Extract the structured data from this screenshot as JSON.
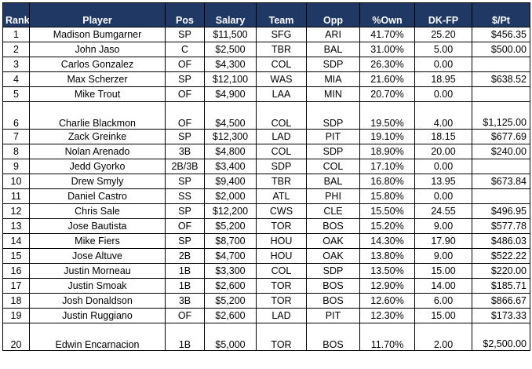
{
  "headers": {
    "rank": "Rank",
    "player": "Player",
    "pos": "Pos",
    "salary": "Salary",
    "team": "Team",
    "opp": "Opp",
    "own": "%Own",
    "dkfp": "DK-FP",
    "per_pt": "$/Pt"
  },
  "rows": [
    {
      "rank": "1",
      "player": "Madison Bumgarner",
      "pos": "SP",
      "salary": "$11,500",
      "team": "SFG",
      "opp": "ARI",
      "own": "41.70%",
      "dkfp": "25.20",
      "per_pt": "$456.35"
    },
    {
      "rank": "2",
      "player": "John Jaso",
      "pos": "C",
      "salary": "$2,500",
      "team": "TBR",
      "opp": "BAL",
      "own": "31.00%",
      "dkfp": "5.00",
      "per_pt": "$500.00"
    },
    {
      "rank": "3",
      "player": "Carlos Gonzalez",
      "pos": "OF",
      "salary": "$4,300",
      "team": "COL",
      "opp": "SDP",
      "own": "26.30%",
      "dkfp": "0.00",
      "per_pt": ""
    },
    {
      "rank": "4",
      "player": "Max Scherzer",
      "pos": "SP",
      "salary": "$12,100",
      "team": "WAS",
      "opp": "MIA",
      "own": "21.60%",
      "dkfp": "18.95",
      "per_pt": "$638.52"
    },
    {
      "rank": "5",
      "player": "Mike Trout",
      "pos": "OF",
      "salary": "$4,900",
      "team": "LAA",
      "opp": "MIN",
      "own": "20.70%",
      "dkfp": "0.00",
      "per_pt": ""
    },
    {
      "rank": "6",
      "player": "Charlie Blackmon",
      "pos": "OF",
      "salary": "$4,500",
      "team": "COL",
      "opp": "SDP",
      "own": "19.50%",
      "dkfp": "4.00",
      "per_pt": "$1,125.00"
    },
    {
      "rank": "7",
      "player": "Zack Greinke",
      "pos": "SP",
      "salary": "$12,300",
      "team": "LAD",
      "opp": "PIT",
      "own": "19.10%",
      "dkfp": "18.15",
      "per_pt": "$677.69"
    },
    {
      "rank": "8",
      "player": "Nolan Arenado",
      "pos": "3B",
      "salary": "$4,800",
      "team": "COL",
      "opp": "SDP",
      "own": "18.90%",
      "dkfp": "20.00",
      "per_pt": "$240.00"
    },
    {
      "rank": "9",
      "player": "Jedd Gyorko",
      "pos": "2B/3B",
      "salary": "$3,400",
      "team": "SDP",
      "opp": "COL",
      "own": "17.10%",
      "dkfp": "0.00",
      "per_pt": ""
    },
    {
      "rank": "10",
      "player": "Drew Smyly",
      "pos": "SP",
      "salary": "$9,400",
      "team": "TBR",
      "opp": "BAL",
      "own": "16.80%",
      "dkfp": "13.95",
      "per_pt": "$673.84"
    },
    {
      "rank": "11",
      "player": "Daniel Castro",
      "pos": "SS",
      "salary": "$2,000",
      "team": "ATL",
      "opp": "PHI",
      "own": "15.80%",
      "dkfp": "0.00",
      "per_pt": ""
    },
    {
      "rank": "12",
      "player": "Chris Sale",
      "pos": "SP",
      "salary": "$12,200",
      "team": "CWS",
      "opp": "CLE",
      "own": "15.50%",
      "dkfp": "24.55",
      "per_pt": "$496.95"
    },
    {
      "rank": "13",
      "player": "Jose Bautista",
      "pos": "OF",
      "salary": "$5,200",
      "team": "TOR",
      "opp": "BOS",
      "own": "15.20%",
      "dkfp": "9.00",
      "per_pt": "$577.78"
    },
    {
      "rank": "14",
      "player": "Mike Fiers",
      "pos": "SP",
      "salary": "$8,700",
      "team": "HOU",
      "opp": "OAK",
      "own": "14.30%",
      "dkfp": "17.90",
      "per_pt": "$486.03"
    },
    {
      "rank": "15",
      "player": "Jose Altuve",
      "pos": "2B",
      "salary": "$4,700",
      "team": "HOU",
      "opp": "OAK",
      "own": "13.80%",
      "dkfp": "9.00",
      "per_pt": "$522.22"
    },
    {
      "rank": "16",
      "player": "Justin Morneau",
      "pos": "1B",
      "salary": "$3,300",
      "team": "COL",
      "opp": "SDP",
      "own": "13.50%",
      "dkfp": "15.00",
      "per_pt": "$220.00"
    },
    {
      "rank": "17",
      "player": "Justin Smoak",
      "pos": "1B",
      "salary": "$2,600",
      "team": "TOR",
      "opp": "BOS",
      "own": "12.90%",
      "dkfp": "14.00",
      "per_pt": "$185.71"
    },
    {
      "rank": "18",
      "player": "Josh Donaldson",
      "pos": "3B",
      "salary": "$5,200",
      "team": "TOR",
      "opp": "BOS",
      "own": "12.60%",
      "dkfp": "6.00",
      "per_pt": "$866.67"
    },
    {
      "rank": "19",
      "player": "Justin Ruggiano",
      "pos": "OF",
      "salary": "$2,600",
      "team": "LAD",
      "opp": "PIT",
      "own": "12.30%",
      "dkfp": "15.00",
      "per_pt": "$173.33"
    },
    {
      "rank": "20",
      "player": "Edwin Encarnacion",
      "pos": "1B",
      "salary": "$5,000",
      "team": "TOR",
      "opp": "BOS",
      "own": "11.70%",
      "dkfp": "2.00",
      "per_pt": "$2,500.00"
    }
  ],
  "tall_rows": [
    "6",
    "20"
  ],
  "colors": {
    "header_bg": "#1f3864",
    "header_text": "#ffffff",
    "border": "#000000"
  }
}
